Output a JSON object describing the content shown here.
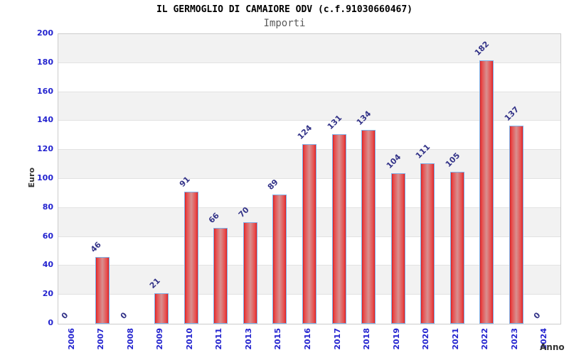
{
  "header": {
    "title": "IL GERMOGLIO DI CAMAIORE ODV (c.f.91030660467)",
    "subtitle": "Importi"
  },
  "chart_data": {
    "type": "bar",
    "title": "IL GERMOGLIO DI CAMAIORE ODV (c.f.91030660467)",
    "subtitle": "Importi",
    "xlabel": "Anno",
    "ylabel": "Euro",
    "categories": [
      "2006",
      "2007",
      "2008",
      "2009",
      "2010",
      "2011",
      "2013",
      "2015",
      "2016",
      "2017",
      "2018",
      "2019",
      "2020",
      "2021",
      "2022",
      "2023",
      "2024"
    ],
    "values": [
      0,
      46,
      0,
      21,
      91,
      66,
      70,
      89,
      124,
      131,
      134,
      104,
      111,
      105,
      182,
      137,
      0
    ],
    "ylim": [
      0,
      200
    ],
    "ytick_step": 20,
    "yticks": [
      "0",
      "20",
      "40",
      "60",
      "80",
      "100",
      "120",
      "140",
      "160",
      "180",
      "200"
    ],
    "grid": "horizontal-bands",
    "legend": "none",
    "colors": {
      "bar_edge_red": "#dd1f1f",
      "bar_center": "#d89090",
      "bar_border": "#7fb0e6",
      "tick_label": "#2323cf",
      "value_label": "#333388",
      "band_gray": "#f2f2f2",
      "gridline": "#e2e2e2",
      "plot_border": "#cccccc",
      "title": "#000000",
      "subtitle": "#5a5a5a",
      "axis_title": "#333333"
    }
  }
}
